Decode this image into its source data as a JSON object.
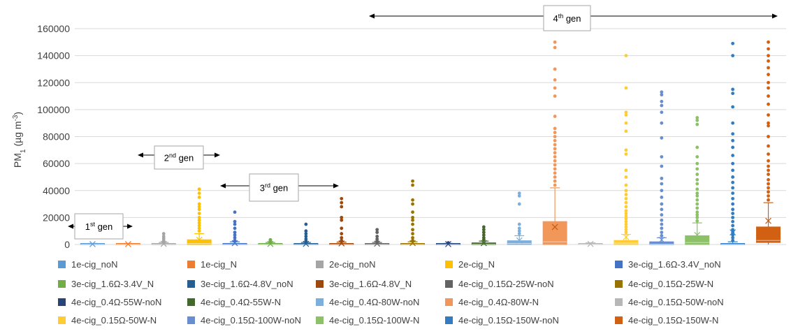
{
  "chart_data": {
    "type": "box",
    "ylabel_main": "PM",
    "ylabel_sub": "1",
    "ylabel_unit": "(µg m",
    "ylabel_unit_sup": "-3",
    "ylabel_close": ")",
    "ylim": [
      0,
      160000
    ],
    "yticks": [
      "0",
      "20000",
      "40000",
      "60000",
      "80000",
      "100000",
      "120000",
      "140000",
      "160000"
    ],
    "grid": true,
    "legend_position": "bottom",
    "annotations": [
      {
        "pre": "1",
        "sup": "st",
        "post": " gen"
      },
      {
        "pre": "2",
        "sup": "nd",
        "post": " gen"
      },
      {
        "pre": "3",
        "sup": "rd",
        "post": " gen"
      },
      {
        "pre": "4",
        "sup": "th",
        "post": " gen"
      }
    ],
    "series": [
      {
        "name": "1e-cig_noN",
        "color": "#5b9bd5",
        "q1": 0,
        "median": 100,
        "q3": 500,
        "mean": 300,
        "wlow": 0,
        "whigh": 800,
        "outliers": []
      },
      {
        "name": "1e-cig_N",
        "color": "#ed7d31",
        "q1": 0,
        "median": 100,
        "q3": 500,
        "mean": 300,
        "wlow": 0,
        "whigh": 800,
        "outliers": []
      },
      {
        "name": "2e-cig_noN",
        "color": "#a5a5a5",
        "q1": 0,
        "median": 200,
        "q3": 600,
        "mean": 500,
        "wlow": 0,
        "whigh": 1500,
        "outliers": [
          2000,
          3000,
          4500,
          6000,
          8000
        ]
      },
      {
        "name": "2e-cig_N",
        "color": "#ffc000",
        "q1": 0,
        "median": 800,
        "q3": 3500,
        "mean": 3500,
        "wlow": 0,
        "whigh": 8000,
        "outliers": [
          10000,
          12000,
          14000,
          16000,
          18000,
          20000,
          23000,
          26000,
          28000,
          30000,
          35000,
          38000,
          41000
        ]
      },
      {
        "name": "3e-cig_1.6Ω-3.4V_noN",
        "color": "#4472c4",
        "q1": 0,
        "median": 100,
        "q3": 800,
        "mean": 1000,
        "wlow": 0,
        "whigh": 2000,
        "outliers": [
          3000,
          5000,
          7000,
          9000,
          12000,
          15000,
          17000,
          24000
        ]
      },
      {
        "name": "3e-cig_1.6Ω-3.4V_N",
        "color": "#70ad47",
        "q1": 0,
        "median": 100,
        "q3": 500,
        "mean": 400,
        "wlow": 0,
        "whigh": 1500,
        "outliers": [
          2000,
          3000,
          3500
        ]
      },
      {
        "name": "3e-cig_1.6Ω-4.8V_noN",
        "color": "#255e91",
        "q1": 0,
        "median": 100,
        "q3": 500,
        "mean": 500,
        "wlow": 0,
        "whigh": 1500,
        "outliers": [
          2500,
          4000,
          6000,
          8000,
          10000,
          15000
        ]
      },
      {
        "name": "3e-cig_1.6Ω-4.8V_N",
        "color": "#9e480e",
        "q1": 0,
        "median": 100,
        "q3": 600,
        "mean": 800,
        "wlow": 0,
        "whigh": 1800,
        "outliers": [
          3000,
          5000,
          8000,
          12000,
          18000,
          20000,
          28000,
          31000,
          34000
        ]
      },
      {
        "name": "4e-cig_0.15Ω-25W-noN",
        "color": "#636363",
        "q1": 0,
        "median": 100,
        "q3": 500,
        "mean": 600,
        "wlow": 0,
        "whigh": 1500,
        "outliers": [
          2500,
          4000,
          6000,
          9000,
          11000
        ]
      },
      {
        "name": "4e-cig_0.15Ω-25W-N",
        "color": "#997300",
        "q1": 0,
        "median": 100,
        "q3": 600,
        "mean": 1000,
        "wlow": 0,
        "whigh": 2000,
        "outliers": [
          3000,
          5000,
          8000,
          11000,
          15000,
          18000,
          20000,
          24000,
          30000,
          33000,
          44000,
          47000
        ]
      },
      {
        "name": "4e-cig_0.4Ω-55W-noN",
        "color": "#264478",
        "q1": 0,
        "median": 100,
        "q3": 400,
        "mean": 300,
        "wlow": 0,
        "whigh": 800,
        "outliers": [
          1200
        ]
      },
      {
        "name": "4e-cig_0.4Ω-55W-N",
        "color": "#43682b",
        "q1": 0,
        "median": 300,
        "q3": 1200,
        "mean": 1000,
        "wlow": 0,
        "whigh": 2500,
        "outliers": [
          3500,
          5000,
          7000,
          9000,
          11000,
          13000
        ]
      },
      {
        "name": "4e-cig_0.4Ω-80W-noN",
        "color": "#7cafdd",
        "q1": 0,
        "median": 800,
        "q3": 2800,
        "mean": 3000,
        "wlow": 0,
        "whigh": 6500,
        "outliers": [
          8000,
          10000,
          12000,
          15000,
          30000,
          36000,
          38000
        ]
      },
      {
        "name": "4e-cig_0.4Ω-80W-N",
        "color": "#f1975a",
        "q1": 0,
        "median": 2000,
        "q3": 17000,
        "mean": 13000,
        "wlow": 0,
        "whigh": 42000,
        "outliers": [
          44000,
          47000,
          50000,
          53000,
          56000,
          59000,
          62000,
          65000,
          68000,
          71000,
          74000,
          77000,
          80000,
          83000,
          86000,
          95000,
          110000,
          116000,
          122000,
          130000,
          146000,
          150000
        ]
      },
      {
        "name": "4e-cig_0.15Ω-50W-noN",
        "color": "#b7b7b7",
        "q1": 0,
        "median": 100,
        "q3": 500,
        "mean": 400,
        "wlow": 0,
        "whigh": 1200,
        "outliers": []
      },
      {
        "name": "4e-cig_0.15Ω-50W-N",
        "color": "#ffcd33",
        "q1": 0,
        "median": 1000,
        "q3": 3000,
        "mean": 5500,
        "wlow": 0,
        "whigh": 7500,
        "outliers": [
          9000,
          11000,
          13000,
          15000,
          17000,
          19000,
          21000,
          23000,
          25000,
          28000,
          31000,
          34000,
          37000,
          40000,
          44000,
          50000,
          55000,
          67000,
          70000,
          84000,
          90000,
          96000,
          98000,
          116000,
          140000
        ]
      },
      {
        "name": "4e-cig_0.15Ω-100W-noN",
        "color": "#698ed0",
        "q1": 0,
        "median": 300,
        "q3": 2000,
        "mean": 3500,
        "wlow": 0,
        "whigh": 5000,
        "outliers": [
          6500,
          9000,
          12000,
          15000,
          18000,
          22000,
          26000,
          30000,
          35000,
          40000,
          45000,
          49000,
          58000,
          65000,
          79000,
          90000,
          98000,
          103000,
          106000,
          111000,
          113000
        ]
      },
      {
        "name": "4e-cig_0.15Ω-100W-N",
        "color": "#8cc168",
        "q1": 0,
        "median": 1500,
        "q3": 6500,
        "mean": 7000,
        "wlow": 0,
        "whigh": 16000,
        "outliers": [
          17500,
          20000,
          22000,
          24000,
          27000,
          30000,
          33000,
          36000,
          38000,
          41000,
          45000,
          48000,
          52000,
          56000,
          60000,
          65000,
          72000,
          89000,
          92000,
          94000
        ]
      },
      {
        "name": "4e-cig_0.15Ω-150W-noN",
        "color": "#327dc2",
        "q1": 0,
        "median": 100,
        "q3": 700,
        "mean": 9000,
        "wlow": 0,
        "whigh": 2000,
        "outliers": [
          3000,
          5000,
          7000,
          9000,
          11000,
          14000,
          17000,
          20000,
          23000,
          26000,
          30000,
          34000,
          38000,
          42000,
          46000,
          50000,
          55000,
          60000,
          66000,
          72000,
          77000,
          82000,
          90000,
          102000,
          112000,
          115000,
          140000,
          149000
        ]
      },
      {
        "name": "4e-cig_0.15Ω-150W-N",
        "color": "#d26012",
        "q1": 1500,
        "median": 3000,
        "q3": 13000,
        "mean": 17500,
        "wlow": 0,
        "whigh": 31000,
        "outliers": [
          33000,
          36000,
          39000,
          42000,
          45000,
          48000,
          52000,
          55000,
          58000,
          62000,
          67000,
          73000,
          80000,
          88000,
          90000,
          96000,
          104000,
          110000,
          116000,
          120000,
          126000,
          131000,
          136000,
          140000,
          145000,
          150000
        ]
      }
    ]
  }
}
